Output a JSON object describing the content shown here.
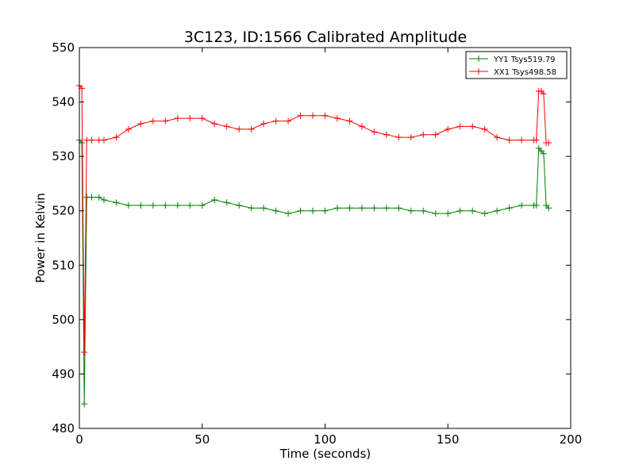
{
  "chart_data": {
    "type": "line",
    "title": "3C123, ID:1566 Calibrated Amplitude",
    "xlabel": "Time (seconds)",
    "ylabel": "Power in Kelvin",
    "xlim": [
      0,
      200
    ],
    "ylim": [
      480,
      550
    ],
    "xticks": [
      0,
      50,
      100,
      150,
      200
    ],
    "yticks": [
      480,
      490,
      500,
      510,
      520,
      530,
      540,
      550
    ],
    "grid": false,
    "legend_position": "top-right",
    "marker": "plus",
    "series": [
      {
        "name": "YY1 Tsys519.79",
        "color": "#008000",
        "x": [
          0,
          1,
          2,
          3,
          5,
          8,
          10,
          15,
          20,
          25,
          30,
          35,
          40,
          45,
          50,
          55,
          60,
          65,
          70,
          75,
          80,
          85,
          90,
          95,
          100,
          105,
          110,
          115,
          120,
          125,
          130,
          135,
          140,
          145,
          150,
          155,
          160,
          165,
          170,
          175,
          180,
          185,
          186,
          187,
          188,
          189,
          190,
          191
        ],
        "y": [
          533,
          532.5,
          484.5,
          522.5,
          522.5,
          522.5,
          522,
          521.5,
          521,
          521,
          521,
          521,
          521,
          521,
          521,
          522,
          521.5,
          521,
          520.5,
          520.5,
          520,
          519.5,
          520,
          520,
          520,
          520.5,
          520.5,
          520.5,
          520.5,
          520.5,
          520.5,
          520,
          520,
          519.5,
          519.5,
          520,
          520,
          519.5,
          520,
          520.5,
          521,
          521,
          521,
          531.5,
          531,
          530.5,
          521,
          520.5
        ]
      },
      {
        "name": "XX1 Tsys498.58",
        "color": "#ff0000",
        "x": [
          0,
          1,
          2,
          3,
          5,
          8,
          10,
          15,
          20,
          25,
          30,
          35,
          40,
          45,
          50,
          55,
          60,
          65,
          70,
          75,
          80,
          85,
          90,
          95,
          100,
          105,
          110,
          115,
          120,
          125,
          130,
          135,
          140,
          145,
          150,
          155,
          160,
          165,
          170,
          175,
          180,
          185,
          186,
          187,
          188,
          189,
          190,
          191
        ],
        "y": [
          543,
          542.5,
          494,
          533,
          533,
          533,
          533,
          533.5,
          535,
          536,
          536.5,
          536.5,
          537,
          537,
          537,
          536,
          535.5,
          535,
          535,
          536,
          536.5,
          536.5,
          537.5,
          537.5,
          537.5,
          537,
          536.5,
          535.5,
          534.5,
          534,
          533.5,
          533.5,
          534,
          534,
          535,
          535.5,
          535.5,
          535,
          533.5,
          533,
          533,
          533,
          533,
          542,
          542,
          541.5,
          532.5,
          532.5
        ]
      }
    ]
  }
}
